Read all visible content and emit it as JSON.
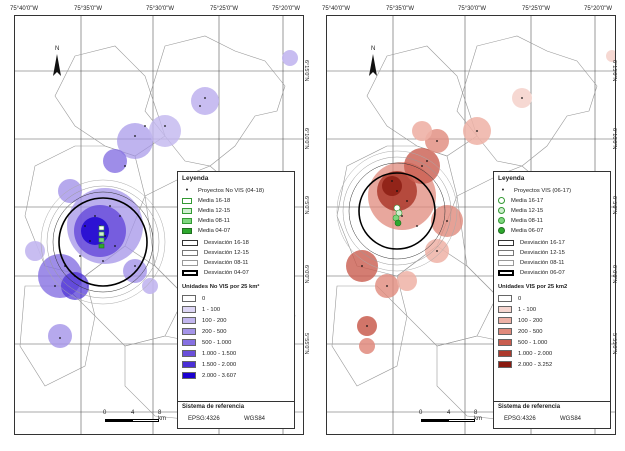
{
  "left": {
    "ticks_top": [
      "75°40'0\"W",
      "75°35'0\"W",
      "75°30'0\"W",
      "75°25'0\"W",
      "75°20'0\"W"
    ],
    "ticks_right": [
      "6°15'0\"N",
      "6°10'0\"N",
      "6°5'0\"N",
      "6°0'0\"N",
      "5°55'0\"N"
    ],
    "north_label": "N",
    "legend": {
      "title": "Leyenda",
      "points_label": "Proyectos No VIS (04-18)",
      "media": [
        "Media 16-18",
        "Media 12-15",
        "Media 08-11",
        "Media 04-07"
      ],
      "desviacion": [
        "Desviación 16-18",
        "Desviación 12-15",
        "Desviación 08-11",
        "Desviación 04-07"
      ],
      "density_title": "Unidades No VIS por 25 km²",
      "classes": [
        "0",
        "1 - 100",
        "100 - 200",
        "200 - 500",
        "500 - 1.000",
        "1.000 - 1.500",
        "1.500 - 2.000",
        "2.000 - 3.607"
      ],
      "colors": [
        "#ffffff",
        "#ddd6f5",
        "#c2b6ef",
        "#a494e8",
        "#8670e2",
        "#6a4fdb",
        "#4a2fd6",
        "#1a00d0"
      ]
    },
    "reference": {
      "title": "Sistema de referencia",
      "epsg": "EPSG:4326",
      "datum": "WGS84"
    },
    "scale": {
      "zero": "0",
      "mid": "4",
      "end": "8 km"
    }
  },
  "right": {
    "ticks_top": [
      "75°40'0\"W",
      "75°35'0\"W",
      "75°30'0\"W",
      "75°25'0\"W",
      "75°20'0\"W"
    ],
    "ticks_right": [
      "6°15'0\"N",
      "6°10'0\"N",
      "6°5'0\"N",
      "6°0'0\"N",
      "5°55'0\"N"
    ],
    "north_label": "N",
    "legend": {
      "title": "Leyenda",
      "points_label": "Proyectos VIS (06-17)",
      "media": [
        "Media 16-17",
        "Media 12-15",
        "Media 08-11",
        "Media 06-07"
      ],
      "desviacion": [
        "Desviación 16-17",
        "Desviación 12-15",
        "Desviación 08-11",
        "Desviación 06-07"
      ],
      "density_title": "Unidades VIS por 25 km2",
      "classes": [
        "0",
        "1 - 100",
        "100 - 200",
        "200 - 500",
        "500 - 1.000",
        "1.000 - 2.000",
        "2.000 - 3.252"
      ],
      "colors": [
        "#ffffff",
        "#f6d6d0",
        "#eeb1a6",
        "#e08a7c",
        "#c95d4f",
        "#ac3a2d",
        "#8a1a10"
      ]
    },
    "reference": {
      "title": "Sistema de referencia",
      "epsg": "EPSG:4326",
      "datum": "WGS84"
    },
    "scale": {
      "zero": "0",
      "mid": "4",
      "end": "8 km"
    }
  }
}
